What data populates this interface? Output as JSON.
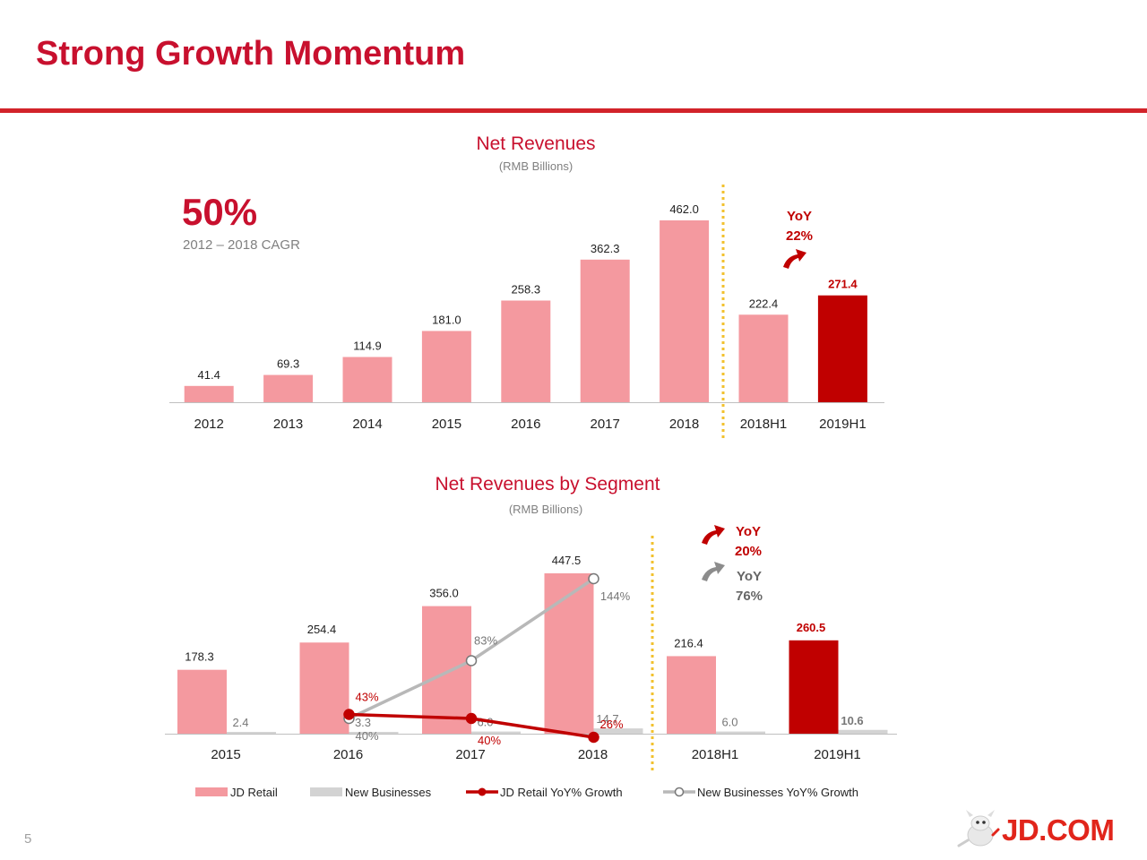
{
  "slide": {
    "title": "Strong Growth Momentum",
    "page_number": "5",
    "logo_text": "JD.COM"
  },
  "colors": {
    "brand_red": "#c8102e",
    "bar_pink": "#f4999f",
    "bar_dark_red": "#c00000",
    "bar_grey": "#d3d3d3",
    "line_red": "#c00000",
    "line_grey": "#b8b8b8",
    "divider_gold": "#f2c12e"
  },
  "highlight": {
    "cagr_value": "50%",
    "cagr_caption": "2012 – 2018 CAGR"
  },
  "chart_data": [
    {
      "type": "bar",
      "title": "Net Revenues",
      "subtitle": "(RMB Billions)",
      "categories": [
        "2012",
        "2013",
        "2014",
        "2015",
        "2016",
        "2017",
        "2018",
        "2018H1",
        "2019H1"
      ],
      "values": [
        41.4,
        69.3,
        114.9,
        181.0,
        258.3,
        362.3,
        462.0,
        222.4,
        271.4
      ],
      "labels": [
        "41.4",
        "69.3",
        "114.9",
        "181.0",
        "258.3",
        "362.3",
        "462.0",
        "222.4",
        "271.4"
      ],
      "highlight_index": 8,
      "ylim": [
        0,
        462
      ],
      "grid": false,
      "annotation": {
        "yoy_label": "YoY",
        "yoy_value": "22%",
        "icon": "red-up-arrow-icon"
      }
    },
    {
      "type": "bar",
      "title": "Net Revenues by Segment",
      "subtitle": "(RMB Billions)",
      "categories": [
        "2015",
        "2016",
        "2017",
        "2018",
        "2018H1",
        "2019H1"
      ],
      "series": [
        {
          "name": "JD Retail",
          "values": [
            178.3,
            254.4,
            356.0,
            447.5,
            216.4,
            260.5
          ],
          "labels": [
            "178.3",
            "254.4",
            "356.0",
            "447.5",
            "216.4",
            "260.5"
          ]
        },
        {
          "name": "New Businesses",
          "values": [
            2.4,
            3.3,
            6.0,
            14.7,
            6.0,
            10.6
          ],
          "labels": [
            "2.4",
            "3.3",
            "6.0",
            "14.7",
            "6.0",
            "10.6"
          ]
        }
      ],
      "lines": [
        {
          "name": "JD Retail YoY% Growth",
          "categories": [
            "2016",
            "2017",
            "2018"
          ],
          "values": [
            43,
            40,
            26
          ],
          "labels": [
            "43%",
            "40%",
            "26%"
          ]
        },
        {
          "name": "New Businesses YoY% Growth",
          "categories": [
            "2016",
            "2017",
            "2018"
          ],
          "values": [
            40,
            83,
            144
          ],
          "labels": [
            "40%",
            "83%",
            "144%"
          ]
        }
      ],
      "highlight_index": 5,
      "ylim": [
        0,
        447.5
      ],
      "grid": false,
      "legend_position": "bottom",
      "annotations": [
        {
          "yoy_label": "YoY",
          "yoy_value": "20%",
          "icon": "red-up-arrow-icon"
        },
        {
          "yoy_label": "YoY",
          "yoy_value": "76%",
          "icon": "grey-up-arrow-icon"
        }
      ]
    }
  ]
}
